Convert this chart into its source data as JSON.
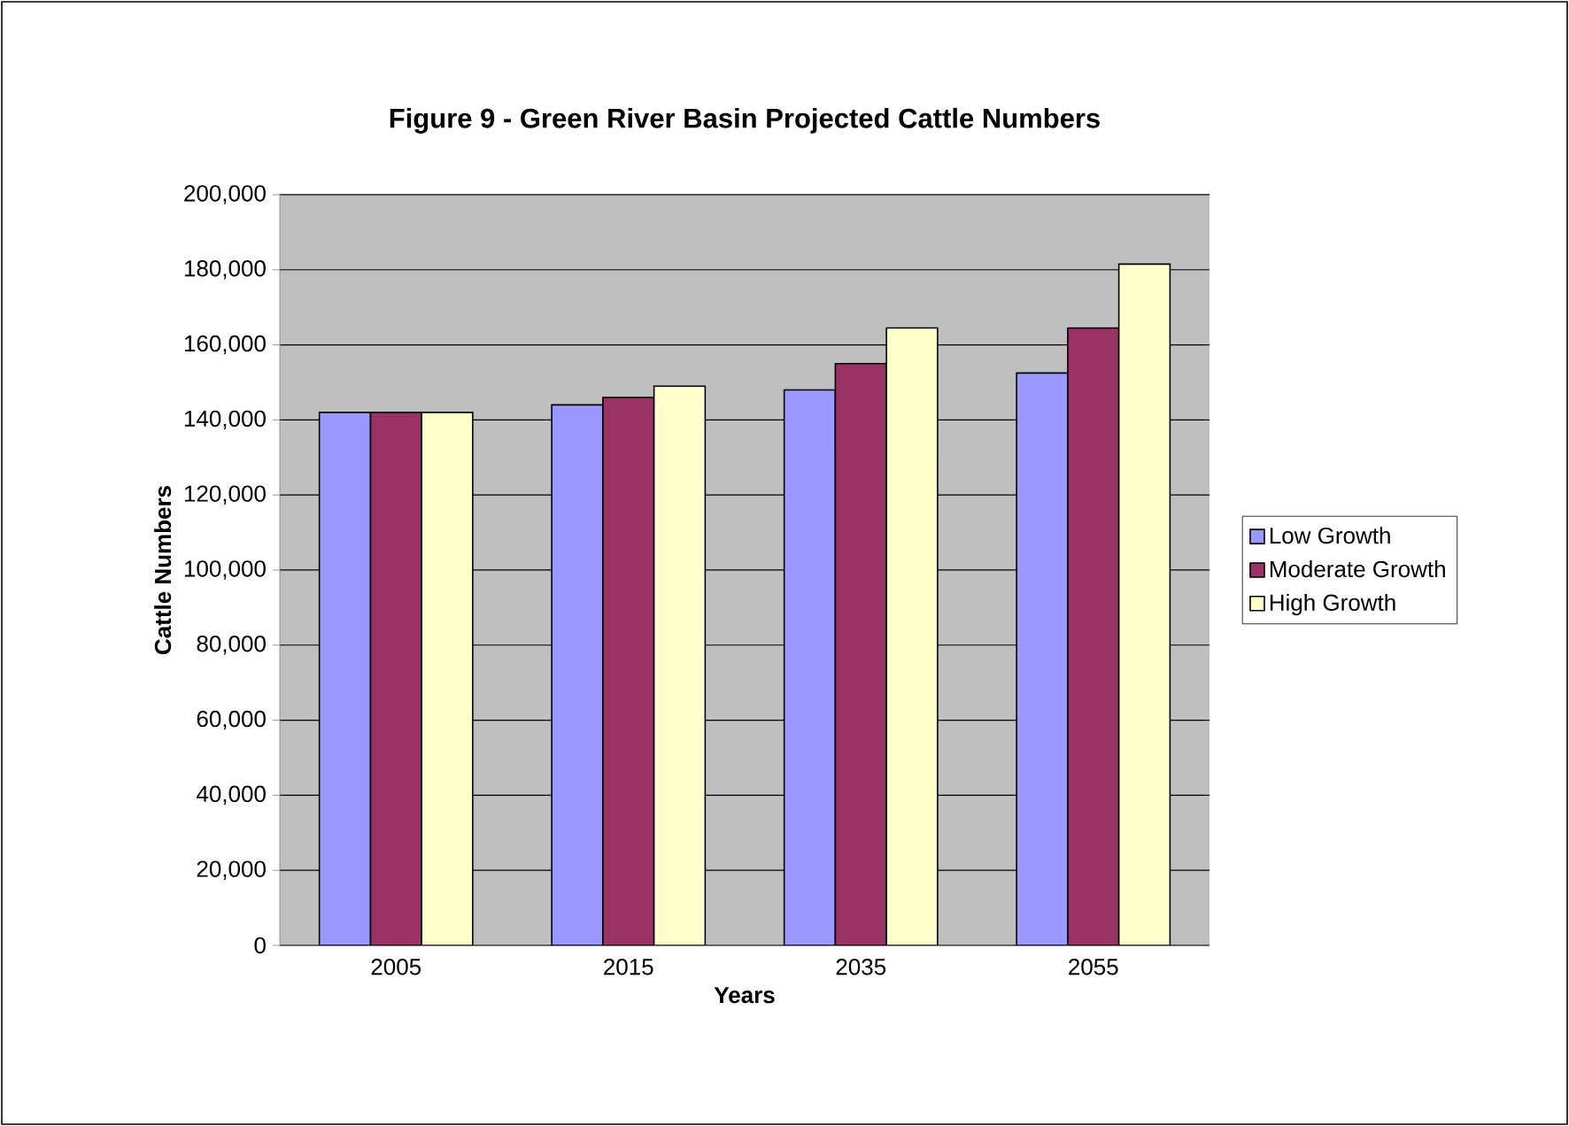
{
  "chart_data": {
    "type": "bar",
    "title": "Figure 9 - Green River Basin Projected Cattle Numbers",
    "xlabel": "Years",
    "ylabel": "Cattle Numbers",
    "categories": [
      "2005",
      "2015",
      "2035",
      "2055"
    ],
    "series": [
      {
        "name": "Low Growth",
        "color": "#9999ff",
        "values": [
          142000,
          144000,
          148000,
          152500
        ]
      },
      {
        "name": "Moderate Growth",
        "color": "#993366",
        "values": [
          142000,
          146000,
          155000,
          164500
        ]
      },
      {
        "name": "High Growth",
        "color": "#ffffcc",
        "values": [
          142000,
          149000,
          164500,
          181500
        ]
      }
    ],
    "ylim": [
      0,
      200000
    ],
    "yticks": [
      0,
      {
        "value": 20000,
        "label": "20,000"
      },
      {
        "value": 40000,
        "label": "40,000"
      },
      {
        "value": 60000,
        "label": "60,000"
      },
      {
        "value": 80000,
        "label": "80,000"
      },
      {
        "value": 100000,
        "label": "100,000"
      },
      {
        "value": 120000,
        "label": "120,000"
      },
      {
        "value": 140000,
        "label": "140,000"
      },
      {
        "value": 160000,
        "label": "160,000"
      },
      {
        "value": 180000,
        "label": "180,000"
      },
      {
        "value": 200000,
        "label": "200,000"
      }
    ],
    "grid": "y",
    "legend": "right"
  }
}
